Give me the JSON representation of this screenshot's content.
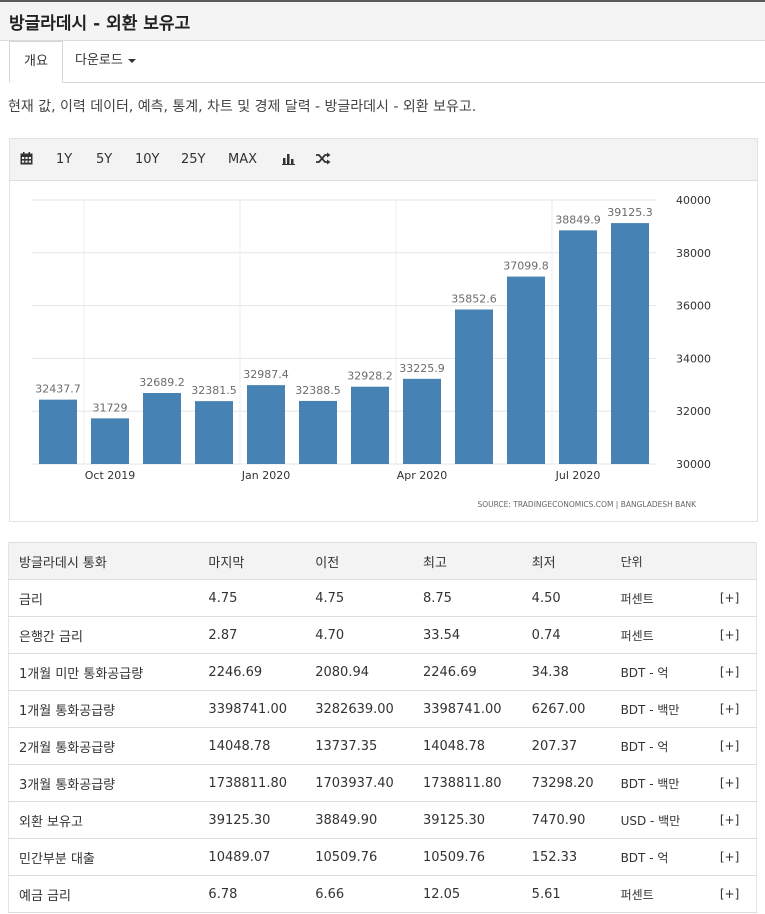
{
  "page_title": "방글라데시 - 외환 보유고",
  "tabs": [
    {
      "label": "개요",
      "active": true
    },
    {
      "label": "다운로드",
      "dropdown": true
    }
  ],
  "description": "현재 값, 이력 데이터, 예측, 통계, 차트 및 경제 달력 - 방글라데시 - 외환 보유고.",
  "toolbar": {
    "calendar_icon": "calendar-icon",
    "ranges": [
      "1Y",
      "5Y",
      "10Y",
      "25Y",
      "MAX"
    ],
    "bar_chart_icon": "bar-chart-icon",
    "compare_icon": "shuffle-icon"
  },
  "chart_data": {
    "type": "bar",
    "categories": [
      "2019-09",
      "2019-10",
      "2019-11",
      "2019-12",
      "2020-01",
      "2020-02",
      "2020-03",
      "2020-04",
      "2020-05",
      "2020-06",
      "2020-07",
      "2020-08"
    ],
    "values": [
      32437.7,
      31729,
      32689.2,
      32381.5,
      32987.4,
      32388.5,
      32928.2,
      33225.9,
      35852.6,
      37099.8,
      38849.9,
      39125.3
    ],
    "value_labels": [
      "32437.7",
      "31729",
      "32689.2",
      "32381.5",
      "32987.4",
      "32388.5",
      "32928.2",
      "33225.9",
      "35852.6",
      "37099.8",
      "38849.9",
      "39125.3"
    ],
    "x_tick_labels": [
      "Oct 2019",
      "Jan 2020",
      "Apr 2020",
      "Jul 2020"
    ],
    "y_ticks": [
      30000,
      32000,
      34000,
      36000,
      38000,
      40000
    ],
    "ylim": [
      30000,
      40000
    ],
    "y_axis_side": "right",
    "bar_color": "#4682b4",
    "grid": true,
    "source": "SOURCE: TRADINGECONOMICS.COM  |  BANGLADESH BANK"
  },
  "table": {
    "headers": [
      "방글라데시 통화",
      "마지막",
      "이전",
      "최고",
      "최저",
      "단위",
      ""
    ],
    "rows": [
      [
        "금리",
        "4.75",
        "4.75",
        "8.75",
        "4.50",
        "퍼센트",
        "[+]"
      ],
      [
        "은행간 금리",
        "2.87",
        "4.70",
        "33.54",
        "0.74",
        "퍼센트",
        "[+]"
      ],
      [
        "1개월 미만 통화공급량",
        "2246.69",
        "2080.94",
        "2246.69",
        "34.38",
        "BDT - 억",
        "[+]"
      ],
      [
        "1개월 통화공급량",
        "3398741.00",
        "3282639.00",
        "3398741.00",
        "6267.00",
        "BDT - 백만",
        "[+]"
      ],
      [
        "2개월 통화공급량",
        "14048.78",
        "13737.35",
        "14048.78",
        "207.37",
        "BDT - 억",
        "[+]"
      ],
      [
        "3개월 통화공급량",
        "1738811.80",
        "1703937.40",
        "1738811.80",
        "73298.20",
        "BDT - 백만",
        "[+]"
      ],
      [
        "외환 보유고",
        "39125.30",
        "38849.90",
        "39125.30",
        "7470.90",
        "USD - 백만",
        "[+]"
      ],
      [
        "민간부분 대출",
        "10489.07",
        "10509.76",
        "10509.76",
        "152.33",
        "BDT - 억",
        "[+]"
      ],
      [
        "예금 금리",
        "6.78",
        "6.66",
        "12.05",
        "5.61",
        "퍼센트",
        "[+]"
      ]
    ]
  }
}
